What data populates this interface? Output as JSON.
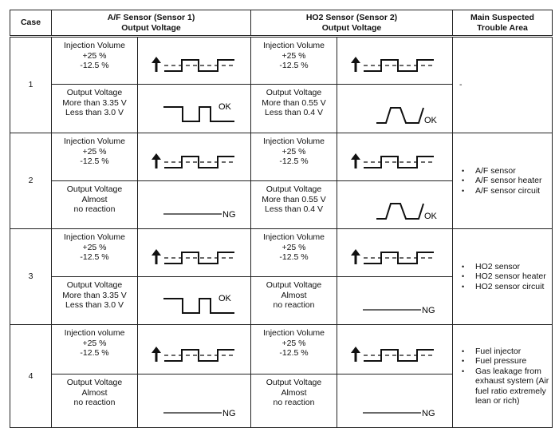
{
  "headers": {
    "case": "Case",
    "af": "A/F Sensor (Sensor 1)\nOutput Voltage",
    "ho2": "HO2 Sensor (Sensor 2)\nOutput Voltage",
    "trouble": "Main Suspected\nTrouble Area"
  },
  "rows": [
    {
      "case": "1",
      "af_inj": "Injection Volume\n+25 %\n-12.5 %",
      "af_out": "Output Voltage\nMore than 3.35 V\nLess than 3.0 V",
      "af_wave": "af-ok",
      "af_result": "OK",
      "ho2_inj": "Injection Volume\n+25 %\n-12.5 %",
      "ho2_out": "Output Voltage\nMore than 0.55 V\nLess than 0.4 V",
      "ho2_wave": "ho2-ok",
      "ho2_result": "OK",
      "trouble": [
        "-"
      ],
      "trouble_dash": true
    },
    {
      "case": "2",
      "af_inj": "Injection Volume\n+25 %\n-12.5 %",
      "af_out": "Output Voltage\nAlmost\nno reaction",
      "af_wave": "ng",
      "af_result": "NG",
      "ho2_inj": "Injection Volume\n+25 %\n-12.5 %",
      "ho2_out": "Output Voltage\nMore than 0.55 V\nLess than 0.4 V",
      "ho2_wave": "ho2-ok",
      "ho2_result": "OK",
      "trouble": [
        "A/F sensor",
        "A/F sensor heater",
        "A/F sensor circuit"
      ]
    },
    {
      "case": "3",
      "af_inj": "Injection Volume\n+25 %\n-12.5 %",
      "af_out": "Output Voltage\nMore than 3.35 V\nLess than 3.0 V",
      "af_wave": "af-ok",
      "af_result": "OK",
      "ho2_inj": "Injection Volume\n+25 %\n-12.5 %",
      "ho2_out": "Output Voltage\nAlmost\nno reaction",
      "ho2_wave": "ng",
      "ho2_result": "NG",
      "trouble": [
        "HO2 sensor",
        "HO2 sensor heater",
        "HO2 sensor circuit"
      ]
    },
    {
      "case": "4",
      "af_inj": "Injection volume\n+25 %\n-12.5 %",
      "af_out": "Output Voltage\nAlmost\nno reaction",
      "af_wave": "ng",
      "af_result": "NG",
      "ho2_inj": "Injection Volume\n+25 %\n-12.5 %",
      "ho2_out": "Output Voltage\nAlmost\nno reaction",
      "ho2_wave": "ng",
      "ho2_result": "NG",
      "trouble": [
        "Fuel injector",
        "Fuel pressure",
        "Gas leakage from exhaust system (Air fuel ratio extremely lean or rich)"
      ]
    }
  ]
}
